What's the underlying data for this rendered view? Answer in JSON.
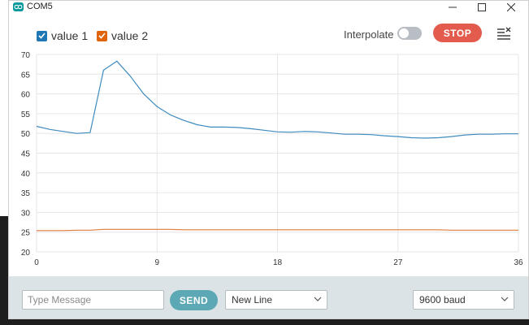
{
  "window": {
    "title": "COM5"
  },
  "legend": [
    {
      "label": "value 1",
      "color": "#1f77b4",
      "checked": true
    },
    {
      "label": "value 2",
      "color": "#e0650a",
      "checked": true
    }
  ],
  "toolbar": {
    "interpolate_label": "Interpolate",
    "interpolate_on": false,
    "stop_label": "STOP"
  },
  "footer": {
    "message_placeholder": "Type Message",
    "send_label": "SEND",
    "line_ending": "New Line",
    "baud_rate": "9600 baud"
  },
  "colors": {
    "accent_stop": "#e35b4d",
    "accent_send": "#5ca8b4",
    "series1": "#3e8bbf",
    "series2": "#e07b39"
  },
  "chart_data": {
    "type": "line",
    "xlim": [
      0,
      36
    ],
    "ylim": [
      20,
      70
    ],
    "x_ticks": [
      "0",
      "9",
      "18",
      "27",
      "36"
    ],
    "y_ticks": [
      "20",
      "25",
      "30",
      "35",
      "40",
      "45",
      "50",
      "55",
      "60",
      "65",
      "70"
    ],
    "grid": true,
    "series": [
      {
        "name": "value 1",
        "x": [
          0,
          1,
          2,
          3,
          4,
          5,
          6,
          7,
          8,
          9,
          10,
          11,
          12,
          13,
          14,
          15,
          16,
          17,
          18,
          19,
          20,
          21,
          22,
          23,
          24,
          25,
          26,
          27,
          28,
          29,
          30,
          31,
          32,
          33,
          34,
          35,
          36
        ],
        "values": [
          51.8,
          51.0,
          50.5,
          50.0,
          50.2,
          66.0,
          68.3,
          64.5,
          60.0,
          56.8,
          54.7,
          53.3,
          52.2,
          51.6,
          51.6,
          51.5,
          51.2,
          50.8,
          50.4,
          50.3,
          50.5,
          50.4,
          50.1,
          49.8,
          49.8,
          49.7,
          49.4,
          49.2,
          48.9,
          48.8,
          48.9,
          49.2,
          49.6,
          49.8,
          49.8,
          49.9,
          49.9
        ]
      },
      {
        "name": "value 2",
        "x": [
          0,
          1,
          2,
          3,
          4,
          5,
          6,
          7,
          8,
          9,
          10,
          11,
          12,
          13,
          14,
          15,
          16,
          17,
          18,
          19,
          20,
          21,
          22,
          23,
          24,
          25,
          26,
          27,
          28,
          29,
          30,
          31,
          32,
          33,
          34,
          35,
          36
        ],
        "values": [
          25.4,
          25.4,
          25.4,
          25.5,
          25.5,
          25.7,
          25.7,
          25.7,
          25.7,
          25.7,
          25.7,
          25.6,
          25.6,
          25.6,
          25.6,
          25.6,
          25.6,
          25.6,
          25.6,
          25.6,
          25.6,
          25.6,
          25.6,
          25.6,
          25.6,
          25.6,
          25.6,
          25.6,
          25.6,
          25.6,
          25.6,
          25.5,
          25.5,
          25.5,
          25.5,
          25.5,
          25.5
        ]
      }
    ]
  }
}
